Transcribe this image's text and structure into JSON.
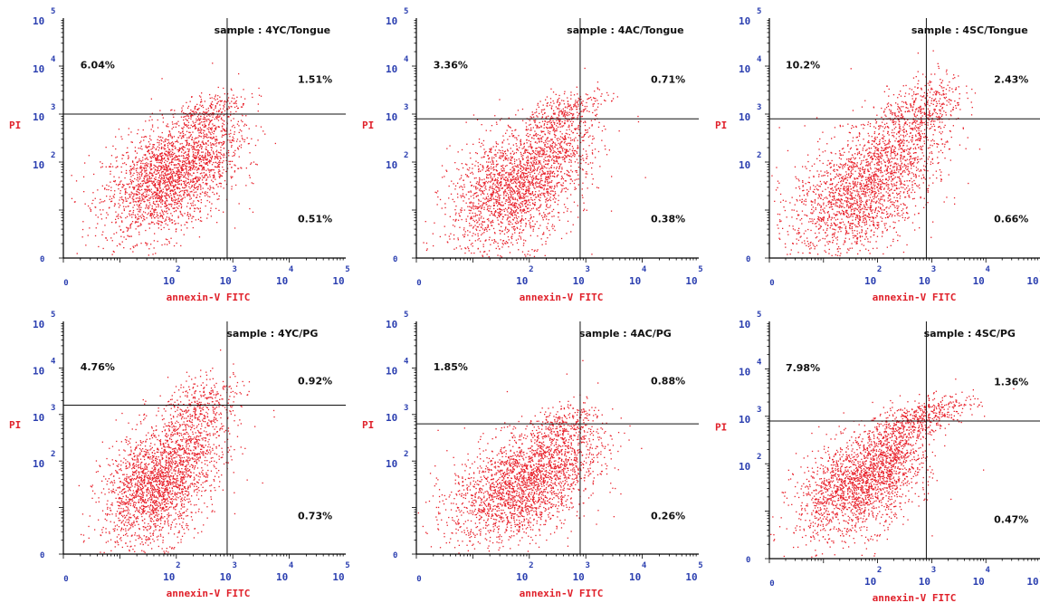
{
  "chart_data": [
    {
      "type": "scatter",
      "sample": "sample : 4YC/Tongue",
      "xlabel": "annexin-V FITC",
      "ylabel": "PI",
      "axis_scale": "log",
      "xlim": [
        0,
        5
      ],
      "ylim": [
        0,
        5
      ],
      "ticks": [
        {
          "base": "10",
          "exp": "0",
          "value": 0
        },
        {
          "base": "10",
          "exp": "2",
          "value": 2
        },
        {
          "base": "10",
          "exp": "3",
          "value": 3
        },
        {
          "base": "10",
          "exp": "4",
          "value": 4
        },
        {
          "base": "10",
          "exp": "5",
          "value": 5
        }
      ],
      "quadrant_gate": {
        "x": 2.9,
        "y": 3.0
      },
      "quadrants": [
        {
          "position": "top-left",
          "label": "6.04%",
          "value": 6.04
        },
        {
          "position": "top-right",
          "label": "1.51%",
          "value": 1.51
        },
        {
          "position": "bottom-right",
          "label": "0.51%",
          "value": 0.51
        }
      ],
      "series": [
        {
          "color": "#e8202a",
          "clusters": [
            {
              "x": 1.8,
              "y": 1.6,
              "sx": 0.55,
              "sy": 0.55,
              "w": 0.75
            },
            {
              "x": 2.5,
              "y": 2.4,
              "sx": 0.38,
              "sy": 0.45,
              "w": 0.18
            },
            {
              "x": 2.6,
              "y": 3.1,
              "sx": 0.35,
              "sy": 0.16,
              "w": 0.07
            }
          ]
        }
      ]
    },
    {
      "type": "scatter",
      "sample": "sample : 4AC/Tongue",
      "xlabel": "annexin-V FITC",
      "ylabel": "PI",
      "axis_scale": "log",
      "xlim": [
        0,
        5
      ],
      "ylim": [
        0,
        5
      ],
      "ticks": [
        {
          "base": "10",
          "exp": "0",
          "value": 0
        },
        {
          "base": "10",
          "exp": "2",
          "value": 2
        },
        {
          "base": "10",
          "exp": "3",
          "value": 3
        },
        {
          "base": "10",
          "exp": "4",
          "value": 4
        },
        {
          "base": "10",
          "exp": "5",
          "value": 5
        }
      ],
      "quadrant_gate": {
        "x": 2.9,
        "y": 2.9
      },
      "quadrants": [
        {
          "position": "top-left",
          "label": "3.36%",
          "value": 3.36
        },
        {
          "position": "top-right",
          "label": "0.71%",
          "value": 0.71
        },
        {
          "position": "bottom-right",
          "label": "0.38%",
          "value": 0.38
        }
      ],
      "series": [
        {
          "color": "#e8202a",
          "clusters": [
            {
              "x": 1.7,
              "y": 1.4,
              "sx": 0.55,
              "sy": 0.6,
              "w": 0.72
            },
            {
              "x": 2.5,
              "y": 2.3,
              "sx": 0.4,
              "sy": 0.45,
              "w": 0.2
            },
            {
              "x": 2.7,
              "y": 3.1,
              "sx": 0.35,
              "sy": 0.16,
              "w": 0.08
            }
          ]
        }
      ]
    },
    {
      "type": "scatter",
      "sample": "sample : 4SC/Tongue",
      "xlabel": "annexin-V FITC",
      "ylabel": "PI",
      "axis_scale": "log",
      "xlim": [
        0,
        5
      ],
      "ylim": [
        0,
        5
      ],
      "ticks": [
        {
          "base": "10",
          "exp": "0",
          "value": 0
        },
        {
          "base": "10",
          "exp": "2",
          "value": 2
        },
        {
          "base": "10",
          "exp": "3",
          "value": 3
        },
        {
          "base": "10",
          "exp": "4",
          "value": 4
        },
        {
          "base": "10",
          "exp": "5",
          "value": 5
        }
      ],
      "quadrant_gate": {
        "x": 2.9,
        "y": 2.9
      },
      "quadrants": [
        {
          "position": "top-left",
          "label": "10.2%",
          "value": 10.2
        },
        {
          "position": "top-right",
          "label": "2.43%",
          "value": 2.43
        },
        {
          "position": "bottom-right",
          "label": "0.66%",
          "value": 0.66
        }
      ],
      "series": [
        {
          "color": "#e8202a",
          "clusters": [
            {
              "x": 1.6,
              "y": 1.3,
              "sx": 0.6,
              "sy": 0.6,
              "w": 0.65
            },
            {
              "x": 2.4,
              "y": 2.3,
              "sx": 0.45,
              "sy": 0.55,
              "w": 0.22
            },
            {
              "x": 2.9,
              "y": 3.2,
              "sx": 0.35,
              "sy": 0.3,
              "w": 0.13
            }
          ]
        }
      ]
    },
    {
      "type": "scatter",
      "sample": "sample : 4YC/PG",
      "xlabel": "annexin-V FITC",
      "ylabel": "PI",
      "axis_scale": "log",
      "xlim": [
        0,
        5
      ],
      "ylim": [
        0,
        5
      ],
      "ticks": [
        {
          "base": "10",
          "exp": "0",
          "value": 0
        },
        {
          "base": "10",
          "exp": "2",
          "value": 2
        },
        {
          "base": "10",
          "exp": "3",
          "value": 3
        },
        {
          "base": "10",
          "exp": "4",
          "value": 4
        },
        {
          "base": "10",
          "exp": "5",
          "value": 5
        }
      ],
      "quadrant_gate": {
        "x": 2.9,
        "y": 3.2
      },
      "quadrants": [
        {
          "position": "top-left",
          "label": "4.76%",
          "value": 4.76
        },
        {
          "position": "top-right",
          "label": "0.92%",
          "value": 0.92
        },
        {
          "position": "bottom-right",
          "label": "0.73%",
          "value": 0.73
        }
      ],
      "series": [
        {
          "color": "#e8202a",
          "clusters": [
            {
              "x": 1.6,
              "y": 1.4,
              "sx": 0.45,
              "sy": 0.6,
              "w": 0.7
            },
            {
              "x": 2.3,
              "y": 2.4,
              "sx": 0.4,
              "sy": 0.55,
              "w": 0.22
            },
            {
              "x": 2.5,
              "y": 3.3,
              "sx": 0.35,
              "sy": 0.25,
              "w": 0.08
            }
          ]
        }
      ]
    },
    {
      "type": "scatter",
      "sample": "sample : 4AC/PG",
      "xlabel": "annexin-V FITC",
      "ylabel": "PI",
      "axis_scale": "log",
      "xlim": [
        0,
        5
      ],
      "ylim": [
        0,
        5
      ],
      "ticks": [
        {
          "base": "10",
          "exp": "0",
          "value": 0
        },
        {
          "base": "10",
          "exp": "2",
          "value": 2
        },
        {
          "base": "10",
          "exp": "3",
          "value": 3
        },
        {
          "base": "10",
          "exp": "4",
          "value": 4
        },
        {
          "base": "10",
          "exp": "5",
          "value": 5
        }
      ],
      "quadrant_gate": {
        "x": 2.9,
        "y": 2.8
      },
      "quadrants": [
        {
          "position": "top-left",
          "label": "1.85%",
          "value": 1.85
        },
        {
          "position": "top-right",
          "label": "0.88%",
          "value": 0.88
        },
        {
          "position": "bottom-right",
          "label": "0.26%",
          "value": 0.26
        }
      ],
      "series": [
        {
          "color": "#e8202a",
          "clusters": [
            {
              "x": 1.8,
              "y": 1.4,
              "sx": 0.6,
              "sy": 0.55,
              "w": 0.75
            },
            {
              "x": 2.5,
              "y": 2.2,
              "sx": 0.45,
              "sy": 0.45,
              "w": 0.2
            },
            {
              "x": 2.7,
              "y": 2.9,
              "sx": 0.3,
              "sy": 0.2,
              "w": 0.05
            }
          ]
        }
      ]
    },
    {
      "type": "scatter",
      "sample": "sample : 4SC/PG",
      "xlabel": "annexin-V FITC",
      "ylabel": "PI",
      "axis_scale": "log",
      "xlim": [
        0,
        5
      ],
      "ylim": [
        0,
        5
      ],
      "ticks": [
        {
          "base": "10",
          "exp": "0",
          "value": 0
        },
        {
          "base": "10",
          "exp": "2",
          "value": 2
        },
        {
          "base": "10",
          "exp": "3",
          "value": 3
        },
        {
          "base": "10",
          "exp": "4",
          "value": 4
        },
        {
          "base": "10",
          "exp": "5",
          "value": 5
        }
      ],
      "quadrant_gate": {
        "x": 2.9,
        "y": 2.9
      },
      "quadrants": [
        {
          "position": "top-left",
          "label": "7.98%",
          "value": 7.98
        },
        {
          "position": "top-right",
          "label": "1.36%",
          "value": 1.36
        },
        {
          "position": "bottom-right",
          "label": "0.47%",
          "value": 0.47
        }
      ],
      "series": [
        {
          "color": "#e8202a",
          "clusters": [
            {
              "x": 1.6,
              "y": 1.5,
              "sx": 0.55,
              "sy": 0.5,
              "w": 0.65
            },
            {
              "x": 2.3,
              "y": 2.3,
              "sx": 0.35,
              "sy": 0.4,
              "w": 0.2
            },
            {
              "x": 2.9,
              "y": 3.0,
              "sx": 0.45,
              "sy": 0.18,
              "w": 0.15
            }
          ]
        }
      ]
    }
  ]
}
